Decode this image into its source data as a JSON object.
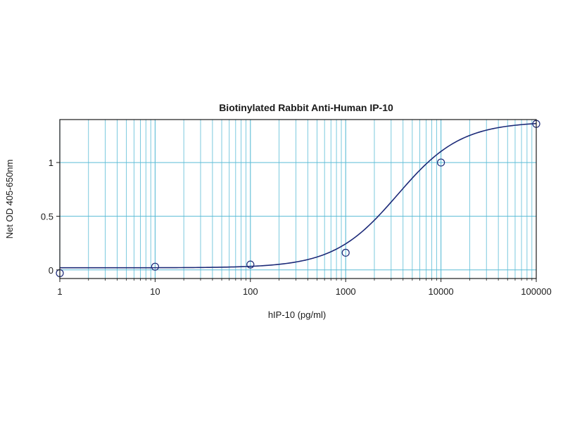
{
  "chart_data": {
    "type": "scatter",
    "title": "Biotinylated Rabbit Anti-Human IP-10",
    "xlabel": "hIP-10 (pg/ml)",
    "ylabel": "Net OD 405-650nm",
    "x_scale": "log",
    "xlim": [
      1,
      100000
    ],
    "ylim": [
      -0.08,
      1.4
    ],
    "x_ticks": [
      {
        "value": 1,
        "label": "1"
      },
      {
        "value": 10,
        "label": "10"
      },
      {
        "value": 100,
        "label": "100"
      },
      {
        "value": 1000,
        "label": "1000"
      },
      {
        "value": 10000,
        "label": "10000"
      },
      {
        "value": 100000,
        "label": "100000"
      }
    ],
    "y_ticks": [
      {
        "value": 0,
        "label": "0"
      },
      {
        "value": 0.5,
        "label": "0.5"
      },
      {
        "value": 1,
        "label": "1"
      }
    ],
    "grid": true,
    "series": [
      {
        "x": [
          1,
          10,
          100,
          1000,
          10000,
          100000
        ],
        "y": [
          -0.03,
          0.03,
          0.05,
          0.16,
          1.0,
          1.36
        ]
      }
    ],
    "fit_curve": {
      "type": "4PL",
      "bottom": 0.02,
      "top": 1.38,
      "ec50": 3500,
      "hill": 1.3
    },
    "colors": {
      "grid": "#5bbcd6",
      "curve": "#1c2a78",
      "marker": "#1c2a78",
      "frame": "#1a1a1a"
    }
  }
}
